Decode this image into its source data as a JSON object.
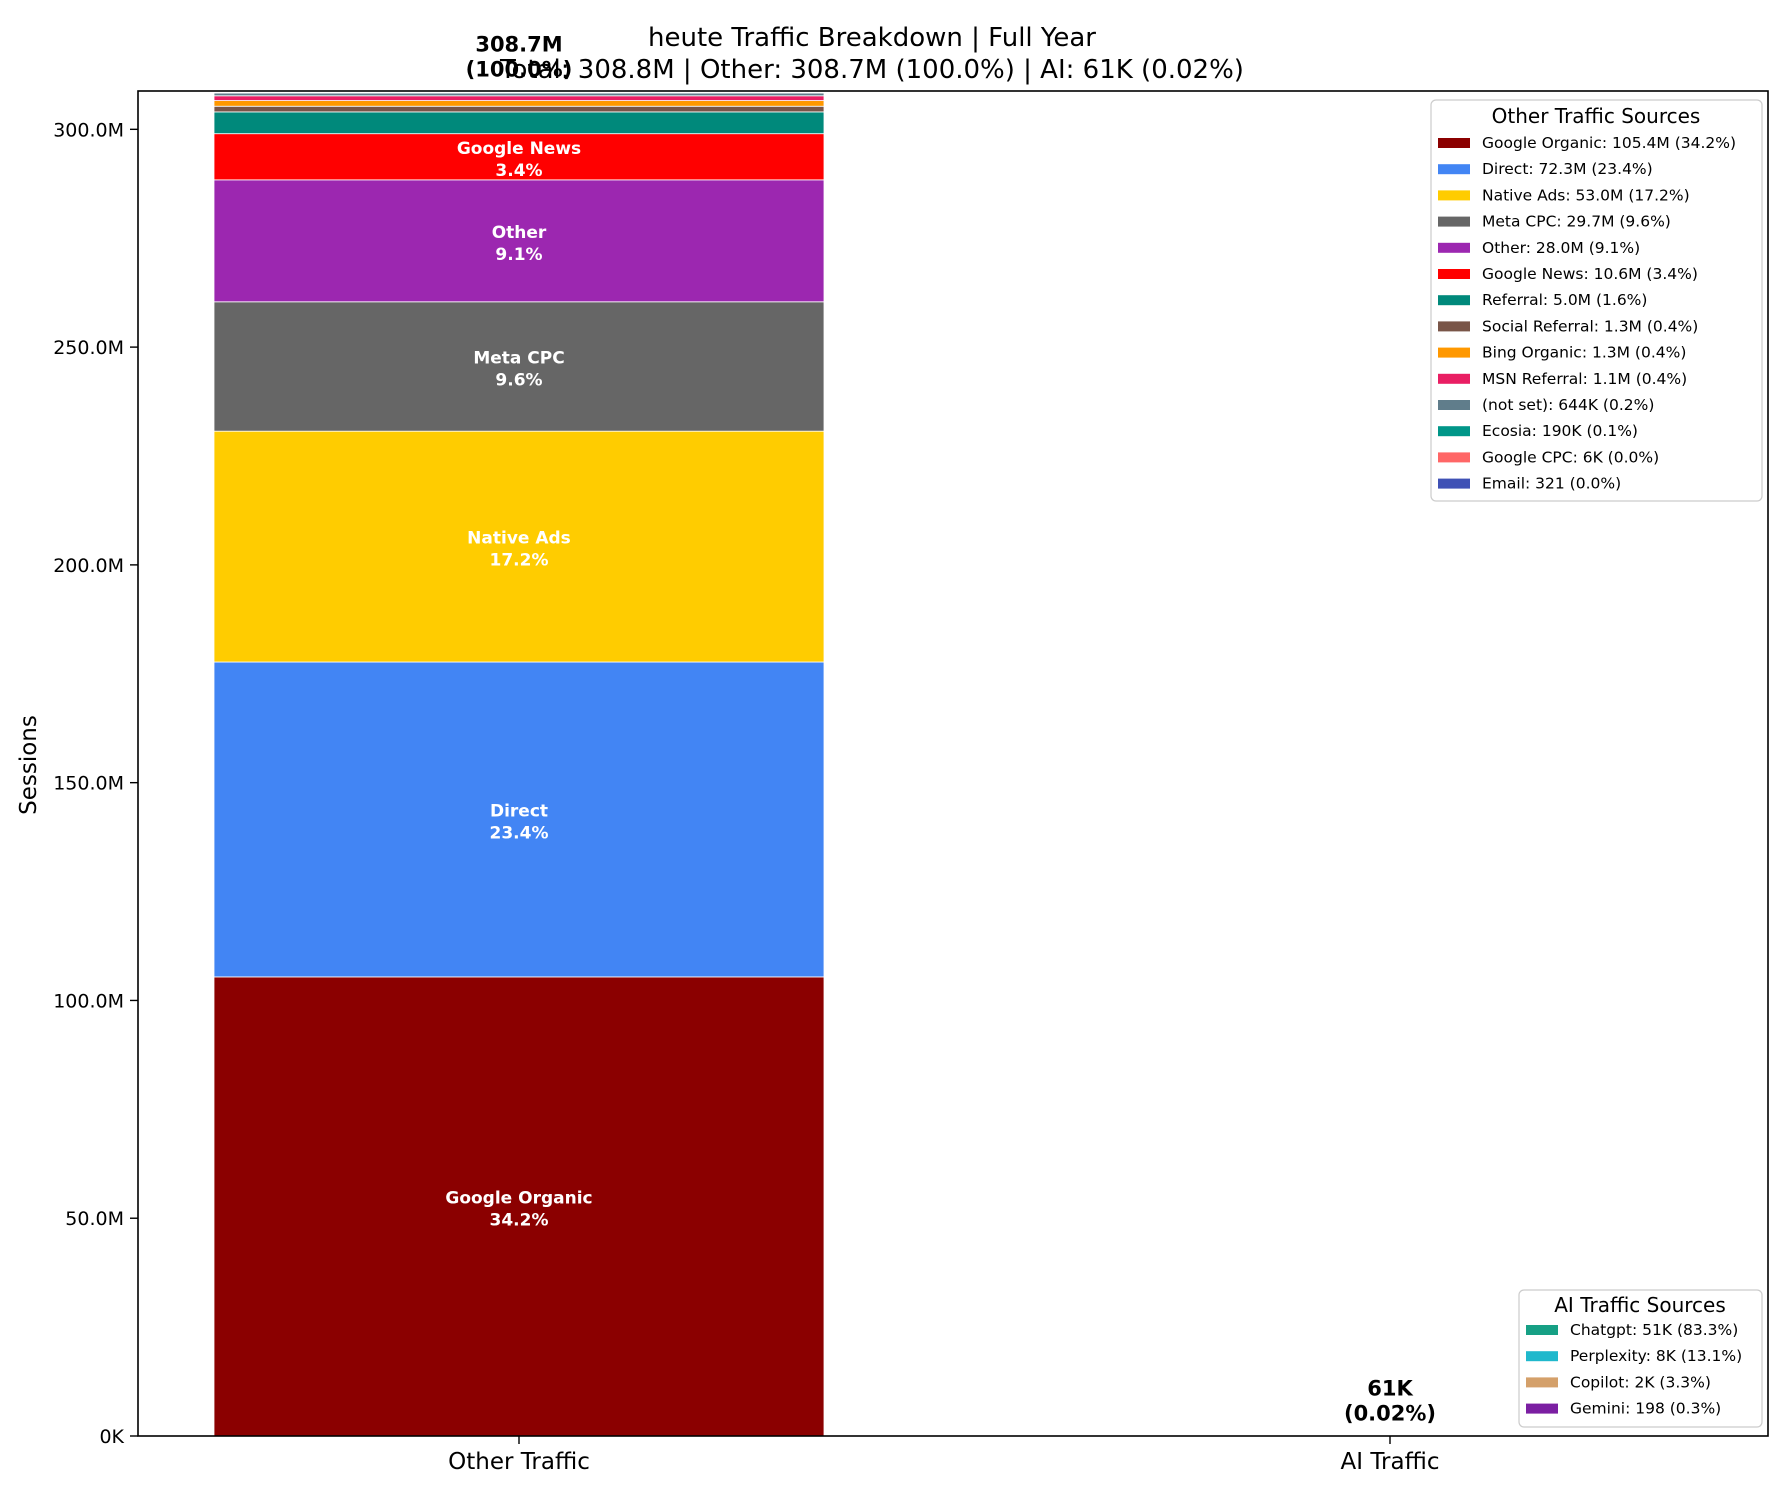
{
  "chart_data": {
    "type": "stacked-bar",
    "title_line1": "heute Traffic Breakdown | Full Year",
    "title_line2": "Total: 308.8M | Other: 308.7M (100.0%) | AI: 61K (0.02%)",
    "ylabel": "Sessions",
    "ylim": [
      0,
      308800000
    ],
    "yticks": [
      {
        "value": 0,
        "label": "0K"
      },
      {
        "value": 50000000,
        "label": "50.0M"
      },
      {
        "value": 100000000,
        "label": "100.0M"
      },
      {
        "value": 150000000,
        "label": "150.0M"
      },
      {
        "value": 200000000,
        "label": "200.0M"
      },
      {
        "value": 250000000,
        "label": "250.0M"
      },
      {
        "value": 300000000,
        "label": "300.0M"
      }
    ],
    "categories": [
      "Other Traffic",
      "AI Traffic"
    ],
    "bar_totals": [
      {
        "line1": "308.7M",
        "line2": "(100.0%)",
        "value": 308700000
      },
      {
        "line1": "61K",
        "line2": "(0.02%)",
        "value": 61000
      }
    ],
    "other_segments": [
      {
        "name": "Google Organic",
        "value": 105400000,
        "pct": "34.2%",
        "color": "#8b0000",
        "legend": "Google Organic: 105.4M (34.2%)",
        "inbar": true
      },
      {
        "name": "Direct",
        "value": 72300000,
        "pct": "23.4%",
        "color": "#4285f4",
        "legend": "Direct: 72.3M (23.4%)",
        "inbar": true
      },
      {
        "name": "Native Ads",
        "value": 53000000,
        "pct": "17.2%",
        "color": "#ffcc00",
        "legend": "Native Ads: 53.0M (17.2%)",
        "inbar": true
      },
      {
        "name": "Meta CPC",
        "value": 29700000,
        "pct": "9.6%",
        "color": "#666666",
        "legend": "Meta CPC: 29.7M (9.6%)",
        "inbar": true
      },
      {
        "name": "Other",
        "value": 28000000,
        "pct": "9.1%",
        "color": "#9c27b0",
        "legend": "Other: 28.0M (9.1%)",
        "inbar": true
      },
      {
        "name": "Google News",
        "value": 10600000,
        "pct": "3.4%",
        "color": "#ff0000",
        "legend": "Google News: 10.6M (3.4%)",
        "inbar": true
      },
      {
        "name": "Referral",
        "value": 5000000,
        "pct": "1.6%",
        "color": "#00897b",
        "legend": "Referral: 5.0M (1.6%)",
        "inbar": false
      },
      {
        "name": "Social Referral",
        "value": 1300000,
        "pct": "0.4%",
        "color": "#795548",
        "legend": "Social Referral: 1.3M (0.4%)",
        "inbar": false
      },
      {
        "name": "Bing Organic",
        "value": 1300000,
        "pct": "0.4%",
        "color": "#ff9800",
        "legend": "Bing Organic: 1.3M (0.4%)",
        "inbar": false
      },
      {
        "name": "MSN Referral",
        "value": 1100000,
        "pct": "0.4%",
        "color": "#e91e63",
        "legend": "MSN Referral: 1.1M (0.4%)",
        "inbar": false
      },
      {
        "name": "(not set)",
        "value": 644000,
        "pct": "0.2%",
        "color": "#607d8b",
        "legend": "(not set): 644K (0.2%)",
        "inbar": false
      },
      {
        "name": "Ecosia",
        "value": 190000,
        "pct": "0.1%",
        "color": "#009688",
        "legend": "Ecosia: 190K (0.1%)",
        "inbar": false
      },
      {
        "name": "Google CPC",
        "value": 6000,
        "pct": "0.0%",
        "color": "#ff6666",
        "legend": "Google CPC: 6K (0.0%)",
        "inbar": false
      },
      {
        "name": "Email",
        "value": 321,
        "pct": "0.0%",
        "color": "#3f51b5",
        "legend": "Email: 321 (0.0%)",
        "inbar": false
      }
    ],
    "ai_segments": [
      {
        "name": "Chatgpt",
        "value": 51000,
        "pct": "83.3%",
        "color": "#16a085",
        "legend": "Chatgpt: 51K (83.3%)"
      },
      {
        "name": "Perplexity",
        "value": 8000,
        "pct": "13.1%",
        "color": "#20b8cc",
        "legend": "Perplexity: 8K (13.1%)"
      },
      {
        "name": "Copilot",
        "value": 2000,
        "pct": "3.3%",
        "color": "#d4a06a",
        "legend": "Copilot: 2K (3.3%)"
      },
      {
        "name": "Gemini",
        "value": 198,
        "pct": "0.3%",
        "color": "#7b1fa2",
        "legend": "Gemini: 198 (0.3%)"
      }
    ],
    "legend_other_title": "Other Traffic Sources",
    "legend_ai_title": "AI Traffic Sources",
    "legend_other_position": "top-right",
    "legend_ai_position": "bottom-right",
    "grid": false
  }
}
